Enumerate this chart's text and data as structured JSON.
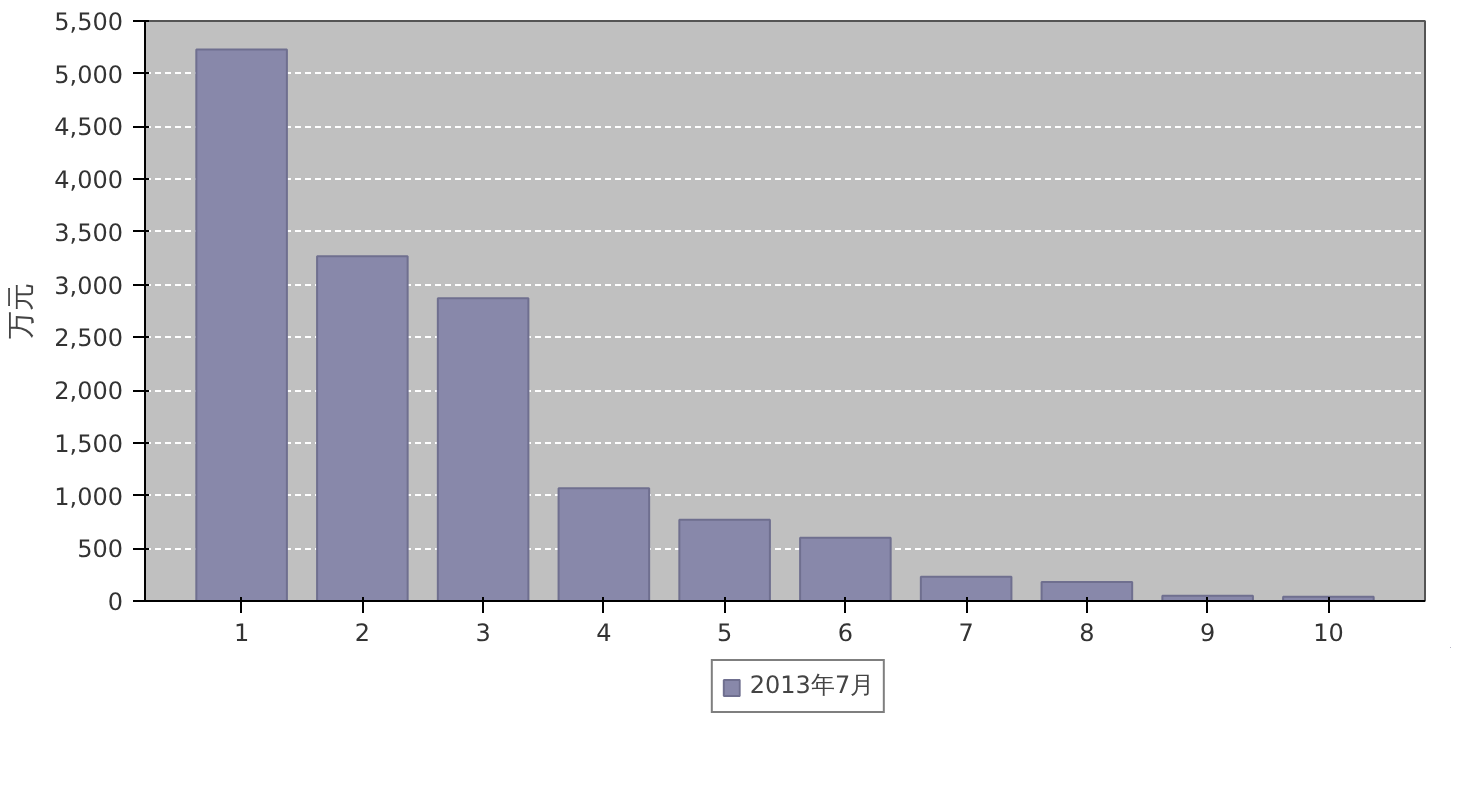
{
  "chart_data": {
    "type": "bar",
    "categories": [
      "1",
      "2",
      "3",
      "4",
      "5",
      "6",
      "7",
      "8",
      "9",
      "10"
    ],
    "ylabel": "万元",
    "ylim": [
      0,
      5500
    ],
    "yticks": [
      {
        "value": 0,
        "label": "0"
      },
      {
        "value": 500,
        "label": "500"
      },
      {
        "value": 1000,
        "label": "1,000"
      },
      {
        "value": 1500,
        "label": "1,500"
      },
      {
        "value": 2000,
        "label": "2,000"
      },
      {
        "value": 2500,
        "label": "2,500"
      },
      {
        "value": 3000,
        "label": "3,000"
      },
      {
        "value": 3500,
        "label": "3,500"
      },
      {
        "value": 4000,
        "label": "4,000"
      },
      {
        "value": 4500,
        "label": "4,500"
      },
      {
        "value": 5000,
        "label": "5,000"
      },
      {
        "value": 5500,
        "label": "5,500"
      }
    ],
    "grid": "y",
    "legend": "bottom",
    "series": [
      {
        "name": "2013年7月",
        "color": "#8888aa",
        "values": [
          5230,
          3270,
          2870,
          1070,
          770,
          600,
          230,
          180,
          50,
          40
        ]
      }
    ]
  }
}
